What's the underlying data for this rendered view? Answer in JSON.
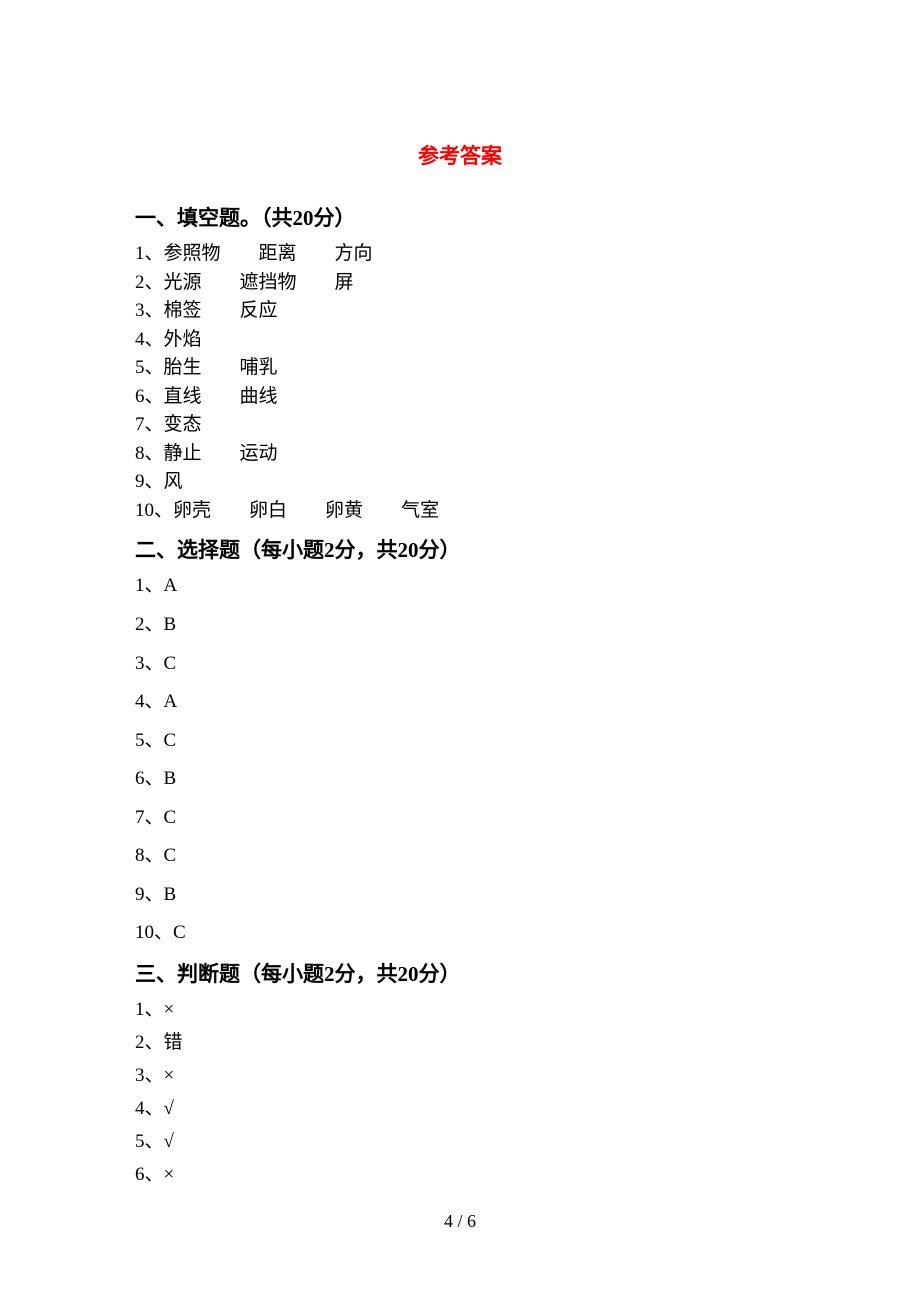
{
  "title": "参考答案",
  "section1": {
    "header": "一、填空题。（共20分）",
    "items": [
      {
        "num": "1、",
        "parts": [
          "参照物",
          "距离",
          "方向"
        ]
      },
      {
        "num": "2、",
        "parts": [
          "光源",
          "遮挡物",
          "屏"
        ]
      },
      {
        "num": "3、",
        "parts": [
          "棉签",
          "反应"
        ]
      },
      {
        "num": "4、",
        "parts": [
          "外焰"
        ]
      },
      {
        "num": "5、",
        "parts": [
          "胎生",
          "哺乳"
        ]
      },
      {
        "num": "6、",
        "parts": [
          "直线",
          "曲线"
        ]
      },
      {
        "num": "7、",
        "parts": [
          "变态"
        ]
      },
      {
        "num": "8、",
        "parts": [
          "静止",
          "运动"
        ]
      },
      {
        "num": "9、",
        "parts": [
          "风"
        ]
      },
      {
        "num": "10、",
        "parts": [
          "卵壳",
          "卵白",
          "卵黄",
          "气室"
        ]
      }
    ]
  },
  "section2": {
    "header": "二、选择题（每小题2分，共20分）",
    "items": [
      "1、A",
      "2、B",
      "3、C",
      "4、A",
      "5、C",
      "6、B",
      "7、C",
      "8、C",
      "9、B",
      "10、C"
    ]
  },
  "section3": {
    "header": "三、判断题（每小题2分，共20分）",
    "items": [
      "1、×",
      "2、错",
      "3、×",
      "4、√",
      "5、√",
      "6、×"
    ]
  },
  "pageNumber": "4 / 6",
  "gaps": {
    "small": 28,
    "normal": 38
  }
}
